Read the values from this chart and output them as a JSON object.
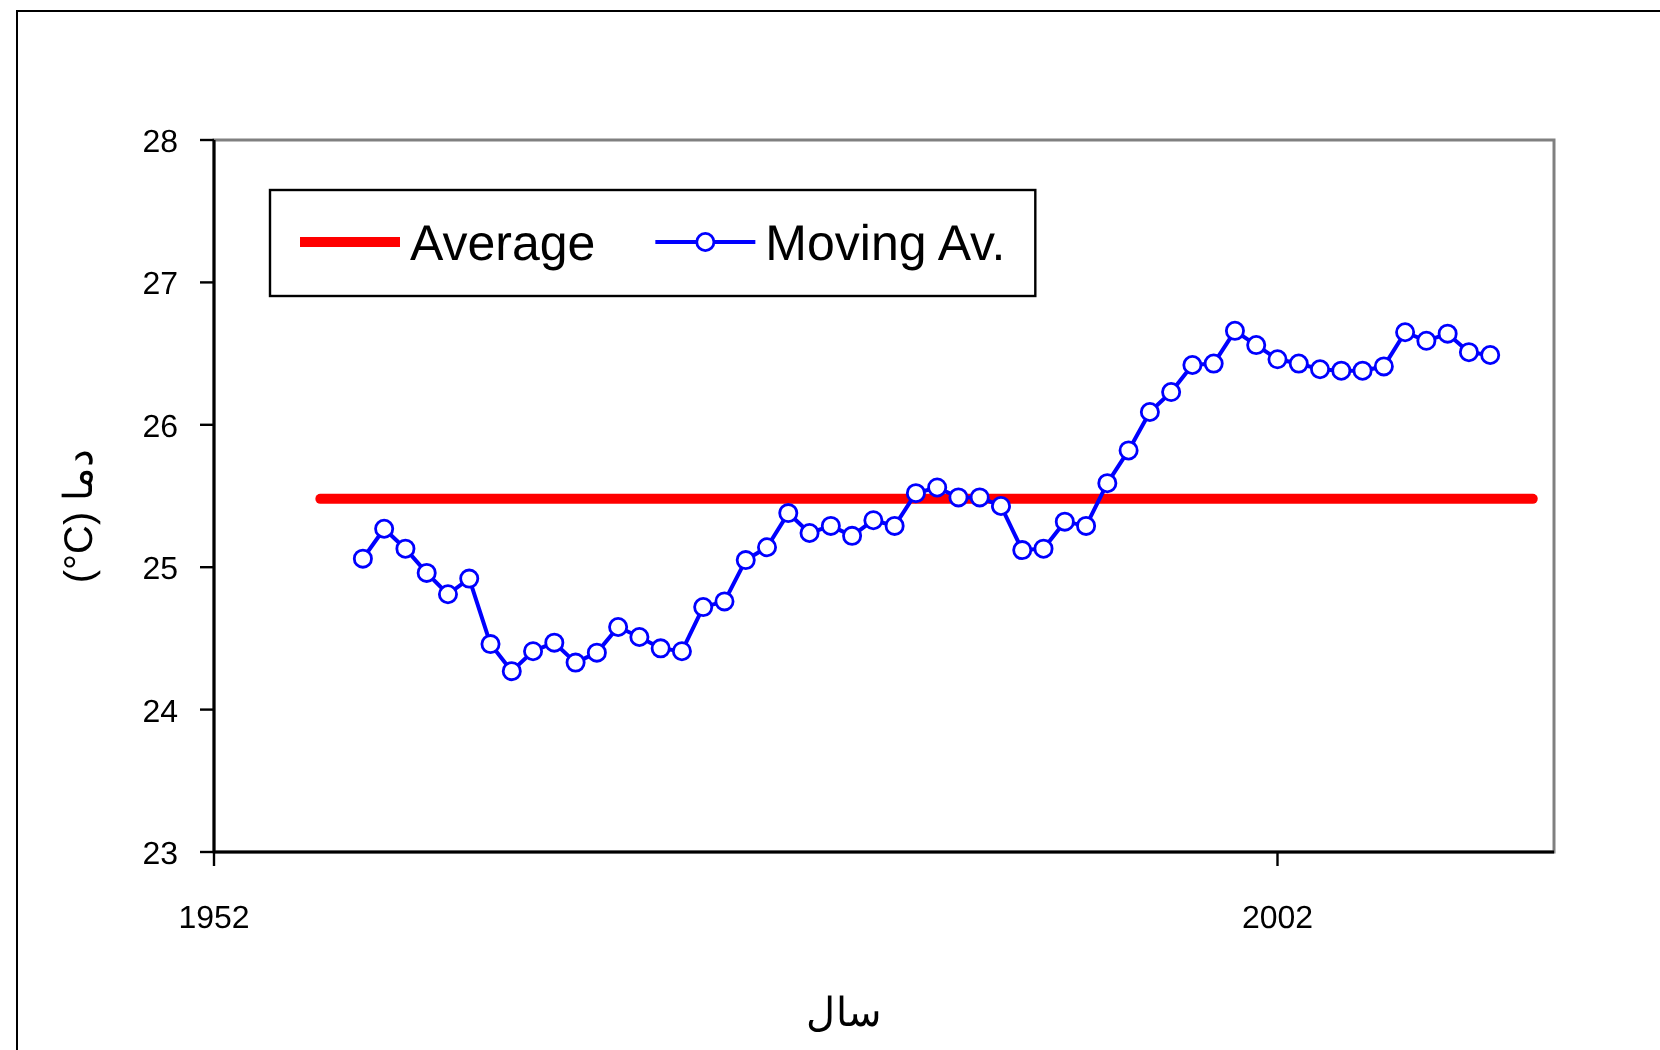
{
  "chart_data": {
    "type": "line",
    "xlabel": "سال",
    "ylabel": "دما (°C)",
    "xlim": [
      1952,
      2015
    ],
    "xticks": [
      1952,
      2002
    ],
    "ylim": [
      23,
      28
    ],
    "yticks": [
      23,
      24,
      25,
      26,
      27,
      28
    ],
    "grid": false,
    "legend": "top left",
    "series": [
      {
        "name": "Average",
        "color": "#ff0000",
        "marker": "none",
        "x": [
          1957,
          2014
        ],
        "values": [
          25.48,
          25.48
        ]
      },
      {
        "name": "Moving Av.",
        "color": "#0000ff",
        "marker": "circle",
        "x": [
          1959,
          1960,
          1961,
          1962,
          1963,
          1964,
          1965,
          1966,
          1967,
          1968,
          1969,
          1970,
          1971,
          1972,
          1973,
          1974,
          1975,
          1976,
          1977,
          1978,
          1979,
          1980,
          1981,
          1982,
          1983,
          1984,
          1985,
          1986,
          1987,
          1988,
          1989,
          1990,
          1991,
          1992,
          1993,
          1994,
          1995,
          1996,
          1997,
          1998,
          1999,
          2000,
          2001,
          2002,
          2003,
          2004,
          2005,
          2006,
          2007,
          2008,
          2009,
          2010,
          2011,
          2012
        ],
        "values": [
          25.06,
          25.27,
          25.13,
          24.96,
          24.81,
          24.92,
          24.46,
          24.27,
          24.41,
          24.47,
          24.33,
          24.4,
          24.58,
          24.51,
          24.43,
          24.41,
          24.72,
          24.76,
          25.05,
          25.14,
          25.38,
          25.24,
          25.29,
          25.22,
          25.33,
          25.29,
          25.52,
          25.56,
          25.49,
          25.49,
          25.43,
          25.12,
          25.13,
          25.32,
          25.29,
          25.59,
          25.82,
          26.09,
          26.23,
          26.42,
          26.43,
          26.66,
          26.56,
          26.46,
          26.43,
          26.39,
          26.38,
          26.38,
          26.41,
          26.65,
          26.59,
          26.64,
          26.51,
          26.49
        ]
      }
    ]
  }
}
